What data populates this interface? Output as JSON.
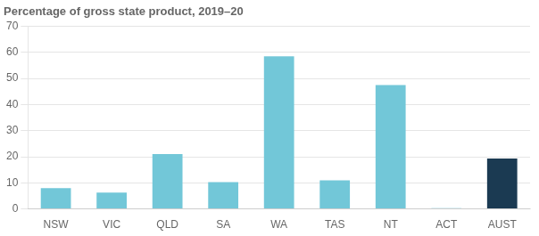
{
  "chart_data": {
    "type": "bar",
    "title": "Percentage of gross state product, 2019–20",
    "categories": [
      "NSW",
      "VIC",
      "QLD",
      "SA",
      "WA",
      "TAS",
      "NT",
      "ACT",
      "AUST"
    ],
    "values": [
      8.0,
      6.3,
      21.0,
      10.3,
      58.5,
      11.0,
      47.5,
      0.3,
      19.3
    ],
    "colors": [
      "#72c7d8",
      "#72c7d8",
      "#72c7d8",
      "#72c7d8",
      "#72c7d8",
      "#72c7d8",
      "#72c7d8",
      "#72c7d8",
      "#1b3a52"
    ],
    "ylim": [
      0,
      70
    ],
    "yticks": [
      0,
      10,
      20,
      30,
      40,
      50,
      60,
      70
    ],
    "grid": true
  }
}
